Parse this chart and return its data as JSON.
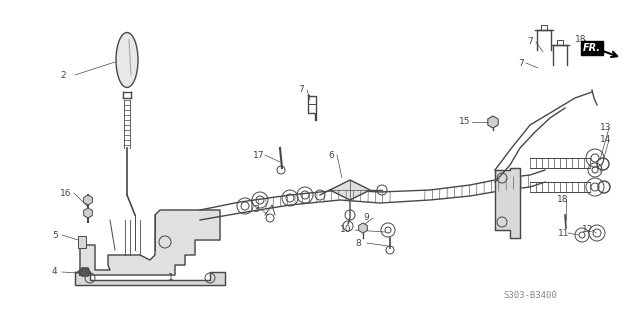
{
  "bg_color": "#ffffff",
  "figure_width": 6.4,
  "figure_height": 3.19,
  "dpi": 100,
  "watermark": "S303-B3400",
  "text_color": "#444444",
  "line_color": "#484848",
  "label_fontsize": 6.5
}
